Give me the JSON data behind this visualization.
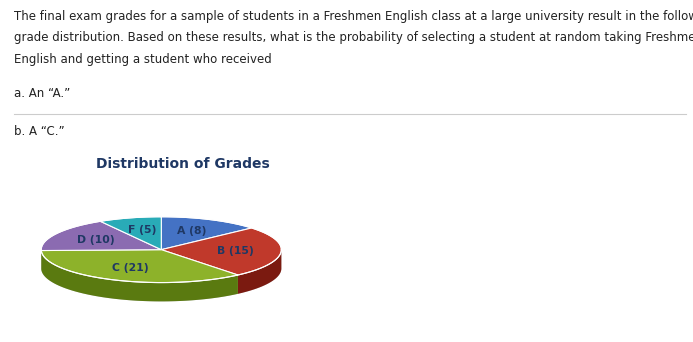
{
  "title": "Distribution of Grades",
  "labels": [
    "A (8)",
    "B (15)",
    "C (21)",
    "D (10)",
    "F (5)"
  ],
  "values": [
    8,
    15,
    21,
    10,
    5
  ],
  "colors": [
    "#4472C4",
    "#C0392B",
    "#8DB22A",
    "#8B6BB1",
    "#29ABB7"
  ],
  "shadow_colors": [
    "#2B4F8A",
    "#7B1A10",
    "#5A7A10",
    "#5A4575",
    "#136A75"
  ],
  "text_color": "#1F3864",
  "title_color": "#1F3864",
  "background_color": "#FFFFFF",
  "paragraph_line1": "The final exam grades for a sample of students in a Freshmen English class at a large university result in the following",
  "paragraph_line2": "grade distribution. Based on these results, what is the probability of selecting a student at random taking Freshmen",
  "paragraph_line3": "English and getting a student who received",
  "qa": "a. An “A.”",
  "qb": "b. A “C.”",
  "fig_width": 6.93,
  "fig_height": 3.42,
  "dpi": 100
}
